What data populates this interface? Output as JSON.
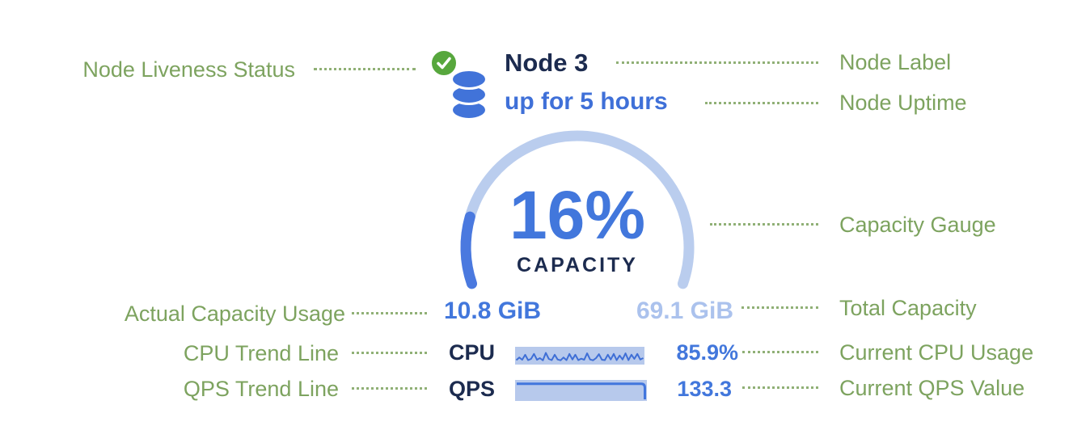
{
  "annotations": {
    "left": [
      {
        "label": "Node Liveness Status"
      },
      {
        "label": "Actual Capacity Usage"
      },
      {
        "label": "CPU Trend Line"
      },
      {
        "label": "QPS Trend Line"
      }
    ],
    "right": [
      {
        "label": "Node Label"
      },
      {
        "label": "Node Uptime"
      },
      {
        "label": "Capacity Gauge"
      },
      {
        "label": "Total Capacity"
      },
      {
        "label": "Current CPU Usage"
      },
      {
        "label": "Current QPS Value"
      }
    ]
  },
  "node": {
    "label": "Node 3",
    "uptime": "up for 5 hours",
    "liveness": "live",
    "icons": {
      "liveness": "check-circle-icon",
      "node": "database-icon"
    }
  },
  "gauge": {
    "percent": 16,
    "value_label": "16%",
    "caption": "CAPACITY",
    "used_label": "10.8 GiB",
    "total_label": "69.1 GiB"
  },
  "metrics": {
    "cpu": {
      "label": "CPU",
      "value": "85.9%",
      "sparkline": [
        0.15,
        0.35,
        0.18,
        0.55,
        0.15,
        0.25,
        0.62,
        0.18,
        0.3,
        0.14,
        0.7,
        0.24,
        0.15,
        0.56,
        0.2,
        0.14,
        0.35,
        0.15,
        0.62,
        0.2,
        0.56,
        0.15,
        0.26,
        0.18,
        0.66,
        0.2,
        0.14,
        0.3,
        0.6,
        0.18,
        0.15,
        0.56,
        0.2,
        0.62,
        0.15,
        0.5,
        0.2,
        0.66,
        0.15,
        0.56,
        0.25,
        0.62,
        0.2,
        0.3
      ]
    },
    "qps": {
      "label": "QPS",
      "value": "133.3",
      "sparkline": [
        0.87,
        0.87,
        0.88,
        0.87,
        0.87,
        0.88,
        0.87,
        0.87,
        0.87,
        0.88,
        0.87,
        0.87,
        0.88,
        0.87,
        0.87,
        0.87,
        0.88,
        0.87,
        0.87,
        0.87
      ]
    }
  },
  "colors": {
    "annotation_green": "#7da35f",
    "check_green": "#57a73d",
    "node_navy": "#1c2b4f",
    "uptime_blue": "#3f70d8",
    "value_blue": "#4277dc",
    "total_light_blue": "#abc2ed",
    "gauge_track": "#bacdee",
    "gauge_progress": "#4a79df",
    "spark_bg": "#b7c9ec",
    "spark_line": "#3f6fd6",
    "db_icon_blue": "#4173d9"
  }
}
